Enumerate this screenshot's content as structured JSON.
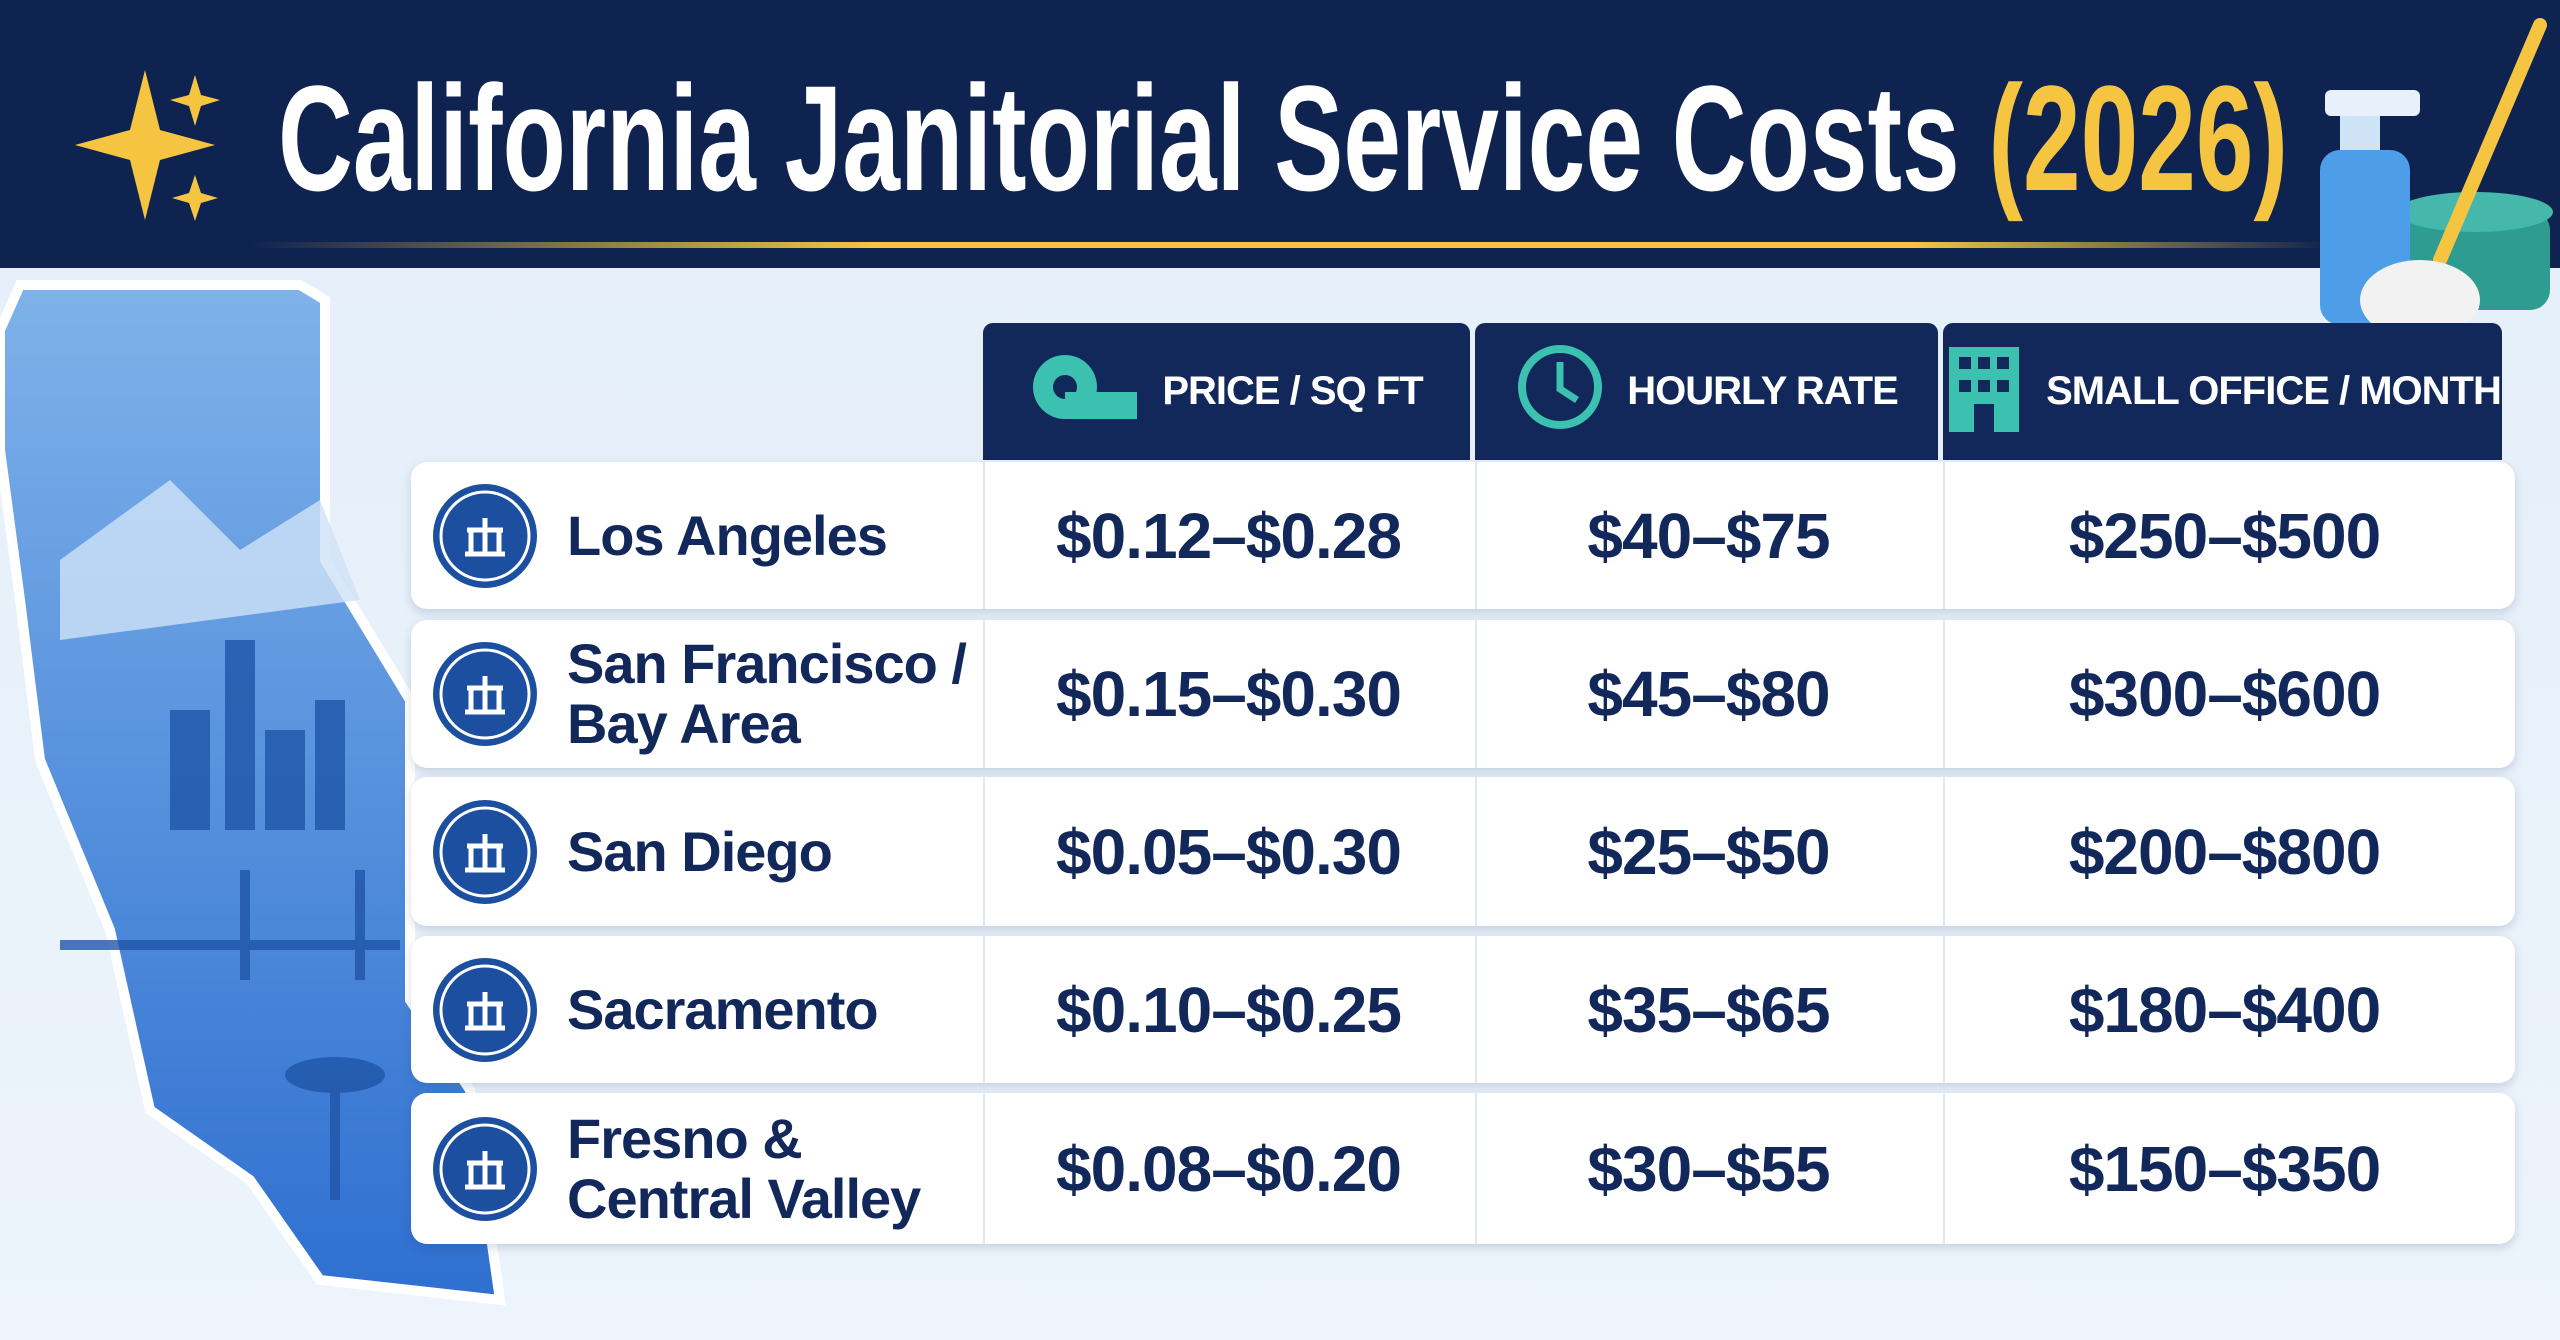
{
  "header": {
    "title": "California Janitorial Service Costs",
    "year": "(2026)"
  },
  "table": {
    "columns": [
      "PRICE / SQ FT",
      "HOURLY RATE",
      "SMALL OFFICE / MONTH"
    ],
    "rows": [
      {
        "city": [
          "Los Angeles"
        ],
        "values": [
          "$0.12–$0.28",
          "$40–$75",
          "$250–$500"
        ]
      },
      {
        "city": [
          "San Francisco /",
          "Bay Area"
        ],
        "values": [
          "$0.15–$0.30",
          "$45–$80",
          "$300–$600"
        ]
      },
      {
        "city": [
          "San Diego"
        ],
        "values": [
          "$0.05–$0.30",
          "$25–$50",
          "$200–$800"
        ]
      },
      {
        "city": [
          "Sacramento"
        ],
        "values": [
          "$0.10–$0.25",
          "$35–$65",
          "$180–$400"
        ]
      },
      {
        "city": [
          "Fresno &",
          "Central Valley"
        ],
        "values": [
          "$0.08–$0.20",
          "$30–$55",
          "$150–$350"
        ]
      }
    ]
  }
}
